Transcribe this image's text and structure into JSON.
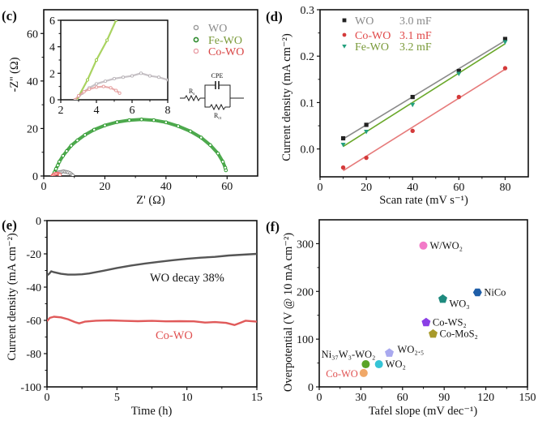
{
  "figure": {
    "panels": [
      "(c)",
      "(d)",
      "(e)",
      "(f)"
    ]
  },
  "chart_data": [
    {
      "panel": "(c)",
      "type": "scatter",
      "title": "",
      "xlabel": "Z'  (Ω)",
      "ylabel": "-Z'' (Ω)",
      "xlim": [
        0,
        70
      ],
      "ylim": [
        0,
        70
      ],
      "x_ticks": [
        0,
        20,
        40,
        60
      ],
      "y_ticks": [
        0,
        20,
        40,
        60
      ],
      "grid": false,
      "legend": {
        "position": "top-right"
      },
      "series": [
        {
          "name": "WO",
          "color": "#8c8c8c",
          "inset_color": "#b9b3b8",
          "text_color": "#8a8a8a",
          "points": [
            [
              2.9,
              0
            ],
            [
              3.2,
              0.5
            ],
            [
              3.6,
              0.9
            ],
            [
              4.0,
              1.2
            ],
            [
              4.5,
              1.4
            ],
            [
              5.0,
              1.6
            ],
            [
              5.5,
              1.7
            ],
            [
              6.0,
              1.8
            ],
            [
              6.5,
              2.0
            ],
            [
              7.0,
              1.8
            ],
            [
              7.5,
              1.7
            ],
            [
              8.0,
              1.5
            ],
            [
              8.6,
              1.2
            ],
            [
              9.1,
              0.7
            ],
            [
              9.5,
              0.3
            ]
          ]
        },
        {
          "name": "Fe-WO",
          "color": "#2e9a2e",
          "inset_color": "#93c83a",
          "text_color": "#7a9a3a",
          "points": [
            [
              2.9,
              0
            ],
            [
              3.5,
              1.5
            ],
            [
              4.0,
              3.0
            ],
            [
              4.6,
              4.5
            ],
            [
              5.1,
              6.0
            ],
            [
              6.3,
              8.5
            ],
            [
              7.5,
              10.5
            ],
            [
              9.0,
              12.8
            ],
            [
              11.0,
              15.0
            ],
            [
              13.5,
              17.3
            ],
            [
              16.5,
              19.5
            ],
            [
              20,
              21.3
            ],
            [
              24,
              22.7
            ],
            [
              28,
              23.5
            ],
            [
              32,
              23.8
            ],
            [
              36,
              23.5
            ],
            [
              40,
              22.6
            ],
            [
              44,
              21.0
            ],
            [
              48,
              18.8
            ],
            [
              51.5,
              16.2
            ],
            [
              54.5,
              13.0
            ],
            [
              57,
              9.5
            ],
            [
              58.6,
              6.0
            ],
            [
              59.4,
              3.5
            ],
            [
              59.6,
              2.4
            ]
          ]
        },
        {
          "name": "Co-WO",
          "color": "#f06a6a",
          "inset_color": "#e39a9a",
          "text_color": "#d84545",
          "points": [
            [
              2.8,
              0
            ],
            [
              3.0,
              0.3
            ],
            [
              3.3,
              0.6
            ],
            [
              3.6,
              0.8
            ],
            [
              4.0,
              0.95
            ],
            [
              4.4,
              1.0
            ],
            [
              4.8,
              0.9
            ],
            [
              5.1,
              0.7
            ],
            [
              5.3,
              0.5
            ]
          ]
        }
      ],
      "inset": {
        "xlim": [
          2,
          8
        ],
        "ylim": [
          0,
          6
        ],
        "x_ticks": [
          2,
          4,
          6,
          8
        ],
        "y_ticks": [
          0,
          2,
          4,
          6
        ]
      },
      "circuit": {
        "cpe_label": "CPE",
        "rs_label": "R",
        "rs_sub": "s",
        "rct_label": "R",
        "rct_sub": "ct"
      }
    },
    {
      "panel": "(d)",
      "type": "scatter",
      "title": "",
      "xlabel": "Scan rate (mV s⁻¹)",
      "ylabel": "Current density (mA cm⁻²)",
      "xlim": [
        0,
        90
      ],
      "ylim": [
        -0.06,
        0.3
      ],
      "x_ticks": [
        0,
        20,
        40,
        60,
        80
      ],
      "x_tick_labels": [
        "0",
        "20",
        "40",
        "60",
        "80"
      ],
      "y_ticks": [
        0.0,
        0.1,
        0.2,
        0.3
      ],
      "y_tick_labels": [
        "0.0",
        "0.1",
        "0.2",
        "0.3"
      ],
      "grid": false,
      "legend": {
        "position": "top-left"
      },
      "x": [
        10,
        20,
        40,
        60,
        80
      ],
      "series": [
        {
          "name": "WO",
          "capacitance": "3.0 mF",
          "marker": "square",
          "marker_color": "#222222",
          "line_color": "#8a8a8a",
          "text_color": "#8a8a8a",
          "values": [
            0.023,
            0.052,
            0.112,
            0.168,
            0.237
          ]
        },
        {
          "name": "Co-WO",
          "capacitance": "3.1 mF",
          "marker": "circle",
          "marker_color": "#d43a3a",
          "line_color": "#e67a7a",
          "text_color": "#e04848",
          "values": [
            -0.04,
            -0.019,
            0.039,
            0.112,
            0.174
          ]
        },
        {
          "name": "Fe-WO",
          "capacitance": "3.2 mF",
          "marker": "triangle-down",
          "marker_color": "#24a07e",
          "line_color": "#6aa82a",
          "text_color": "#7a9a3a",
          "values": [
            0.009,
            0.037,
            0.095,
            0.162,
            0.23
          ]
        }
      ]
    },
    {
      "panel": "(e)",
      "type": "line",
      "title": "",
      "xlabel": "Time (h)",
      "ylabel": "Current density (mA cm⁻²)",
      "xlim": [
        0,
        15
      ],
      "ylim": [
        -100,
        0
      ],
      "x_ticks": [
        0,
        5,
        10,
        15
      ],
      "y_ticks": [
        0,
        -20,
        -40,
        -60,
        -80,
        -100
      ],
      "grid": false,
      "annotations": [
        {
          "text": "WO  decay 38%",
          "color": "#111111"
        },
        {
          "text": "Co-WO",
          "color": "#e05050"
        }
      ],
      "series": [
        {
          "name": "WO",
          "color": "#555555",
          "points": [
            [
              0,
              -33
            ],
            [
              0.15,
              -32
            ],
            [
              0.3,
              -30.5
            ],
            [
              0.5,
              -31
            ],
            [
              1.0,
              -32
            ],
            [
              1.5,
              -32.5
            ],
            [
              2.0,
              -32.5
            ],
            [
              2.5,
              -32.3
            ],
            [
              3.0,
              -31.8
            ],
            [
              3.5,
              -31
            ],
            [
              4,
              -30.2
            ],
            [
              5,
              -28.5
            ],
            [
              6,
              -27
            ],
            [
              7,
              -25.8
            ],
            [
              8,
              -24.8
            ],
            [
              9,
              -23.8
            ],
            [
              10,
              -23
            ],
            [
              11,
              -22.3
            ],
            [
              12,
              -21.8
            ],
            [
              13,
              -21
            ],
            [
              14,
              -20.5
            ],
            [
              15,
              -20
            ]
          ]
        },
        {
          "name": "Co-WO",
          "color": "#e05a5a",
          "points": [
            [
              0,
              -60.5
            ],
            [
              0.2,
              -58.5
            ],
            [
              0.5,
              -57.8
            ],
            [
              1.0,
              -58.2
            ],
            [
              1.5,
              -59.3
            ],
            [
              2.0,
              -61
            ],
            [
              2.3,
              -61.8
            ],
            [
              2.7,
              -60.8
            ],
            [
              3.5,
              -60.2
            ],
            [
              4.5,
              -60
            ],
            [
              5.5,
              -60.3
            ],
            [
              6.5,
              -60.5
            ],
            [
              7.5,
              -60.3
            ],
            [
              8.5,
              -60.6
            ],
            [
              9.5,
              -60.5
            ],
            [
              10.5,
              -60.6
            ],
            [
              11.3,
              -61.3
            ],
            [
              12,
              -61
            ],
            [
              12.8,
              -61.5
            ],
            [
              13.4,
              -62.8
            ],
            [
              13.8,
              -61.5
            ],
            [
              14.2,
              -60.2
            ],
            [
              15,
              -60.8
            ]
          ]
        }
      ]
    },
    {
      "panel": "(f)",
      "type": "scatter",
      "title": "",
      "xlabel": "Tafel slope (mV dec⁻¹)",
      "ylabel": "Overpotential (V @ 10 mA cm⁻²)",
      "xlim": [
        0,
        150
      ],
      "ylim": [
        0,
        350
      ],
      "x_ticks": [
        0,
        30,
        60,
        90,
        120,
        150
      ],
      "y_ticks": [
        0,
        100,
        200,
        300
      ],
      "grid": false,
      "points": [
        {
          "label": "W/WO₂",
          "x": 75,
          "y": 296,
          "color": "#f27ac8",
          "marker": "circle",
          "label_pos": "right",
          "label_color": "#111111"
        },
        {
          "label": "NiCo",
          "x": 114,
          "y": 198,
          "color": "#1f5ea8",
          "marker": "hexagon",
          "label_pos": "right",
          "label_color": "#111111"
        },
        {
          "label": "WO₃",
          "x": 89,
          "y": 184,
          "color": "#1e8a7e",
          "marker": "pentagon",
          "label_pos": "right-below",
          "label_color": "#111111"
        },
        {
          "label": "Co-WS₂",
          "x": 77,
          "y": 135,
          "color": "#8b3fe6",
          "marker": "pentagon",
          "label_pos": "right",
          "label_color": "#111111"
        },
        {
          "label": "Co-MoS₂",
          "x": 82,
          "y": 111,
          "color": "#a89a2a",
          "marker": "pentagon",
          "label_pos": "right",
          "label_color": "#111111"
        },
        {
          "label": "WO₂.₅",
          "x": 50.5,
          "y": 71,
          "color": "#a9a9ef",
          "marker": "pentagon",
          "label_pos": "right-above",
          "label_color": "#111111"
        },
        {
          "label": "WO₂",
          "x": 43,
          "y": 47.5,
          "color": "#35c4d6",
          "marker": "circle",
          "label_pos": "right",
          "label_color": "#111111"
        },
        {
          "label": "Ni₃₇W₃-WO₂",
          "x": 33.5,
          "y": 47.5,
          "color": "#5aa428",
          "marker": "circle",
          "label_pos": "above-left",
          "label_color": "#111111"
        },
        {
          "label": "Co-WO",
          "x": 32,
          "y": 29,
          "color": "#f0a868",
          "marker": "circle",
          "label_pos": "left",
          "label_color": "#e05050"
        }
      ]
    }
  ]
}
